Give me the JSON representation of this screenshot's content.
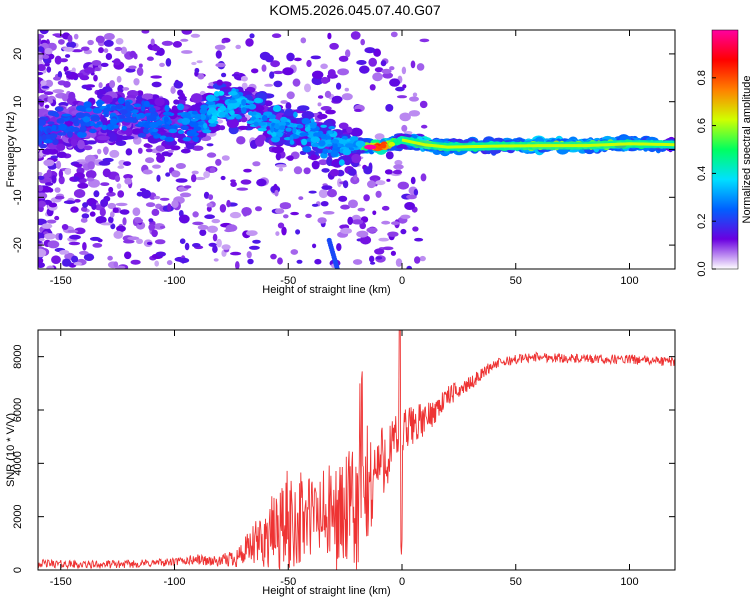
{
  "figure": {
    "title": "KOM5.2026.045.07.40.G07"
  },
  "chart_data": [
    {
      "type": "heatmap",
      "xlabel": "Height of straight line (km)",
      "ylabel": "Frequency (Hz)",
      "xlim": [
        -160,
        120
      ],
      "ylim": [
        -25,
        25
      ],
      "xticks": [
        -150,
        -100,
        -50,
        0,
        50,
        100
      ],
      "yticks": [
        -20,
        -10,
        0,
        10,
        20
      ],
      "colorbar": {
        "label": "Normalized spectral amplitude",
        "range": [
          0,
          1
        ],
        "ticks": [
          "0.0",
          "0.2",
          "0.4",
          "0.6",
          "0.8"
        ],
        "colors": [
          "#ffffff",
          "#6a00e0",
          "#0060ff",
          "#00e0ff",
          "#00ff60",
          "#d0ff00",
          "#ff8000",
          "#ff0000",
          "#ff00a0"
        ]
      },
      "ridge": {
        "x": [
          -160,
          -150,
          -140,
          -130,
          -120,
          -110,
          -100,
          -90,
          -80,
          -70,
          -60,
          -50,
          -40,
          -30,
          -20,
          -10,
          0,
          10,
          20,
          40,
          60,
          80,
          100,
          120
        ],
        "freq": [
          4,
          5,
          6,
          7,
          7,
          6,
          5,
          6,
          9,
          9,
          6,
          4,
          3,
          1,
          1,
          0.5,
          2,
          1,
          0.5,
          0.7,
          0.8,
          0.8,
          1.2,
          1.0
        ],
        "amp": [
          0.25,
          0.25,
          0.28,
          0.28,
          0.28,
          0.28,
          0.3,
          0.32,
          0.38,
          0.36,
          0.35,
          0.35,
          0.35,
          0.35,
          0.35,
          0.95,
          0.4,
          0.75,
          0.55,
          0.55,
          0.7,
          0.68,
          0.62,
          0.4
        ]
      }
    },
    {
      "type": "line",
      "xlabel": "Height of straight line (km)",
      "ylabel": "SNR (10 * V/V)",
      "xlim": [
        -160,
        120
      ],
      "ylim": [
        0,
        9000
      ],
      "xticks": [
        -150,
        -100,
        -50,
        0,
        50,
        100
      ],
      "yticks": [
        0,
        2000,
        4000,
        6000,
        8000
      ],
      "series": [
        {
          "name": "SNR",
          "color": "#ee3333",
          "x": [
            -160,
            -140,
            -120,
            -100,
            -90,
            -80,
            -70,
            -60,
            -50,
            -40,
            -30,
            -20,
            -15,
            -10,
            -5,
            0,
            5,
            10,
            20,
            30,
            40,
            50,
            60,
            80,
            100,
            120
          ],
          "y": [
            250,
            200,
            220,
            300,
            400,
            300,
            600,
            1200,
            1800,
            2000,
            2000,
            2200,
            3000,
            4000,
            4500,
            5000,
            5500,
            5600,
            6500,
            7000,
            7700,
            7900,
            8000,
            7900,
            7900,
            7800
          ],
          "noise": [
            150,
            150,
            150,
            150,
            200,
            200,
            500,
            1200,
            2000,
            1700,
            2000,
            2500,
            2500,
            1500,
            1200,
            1000,
            800,
            600,
            400,
            250,
            200,
            180,
            180,
            180,
            180,
            180
          ]
        }
      ]
    }
  ]
}
